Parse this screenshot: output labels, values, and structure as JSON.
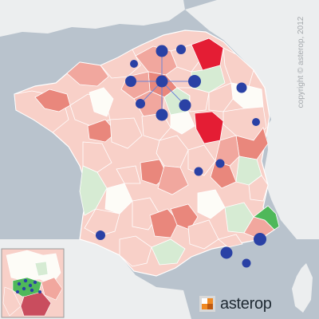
{
  "map": {
    "colors": {
      "sea": "#b9c3cd",
      "land_outside": "#eceeef",
      "neutral_white": "#fdfcf7",
      "light_pink": "#f8d0c8",
      "mid_pink": "#f1a79e",
      "salmon": "#e9877c",
      "strong_red": "#e41d34",
      "light_green": "#d6ebd3",
      "strong_green": "#4fb85a",
      "marker_blue": "#2a41a5",
      "connector_line": "#6f86d6",
      "inset_fill": "#c94d5e"
    },
    "markers_description": "blue-circle-icon"
  },
  "copyright": {
    "text": "copyright © asterop, 2012",
    "color": "#a5a9ad"
  },
  "brand": {
    "name": "asterop",
    "icon": "asterop-square-logo-icon"
  },
  "inset": {
    "description": "paris-region-inset"
  }
}
